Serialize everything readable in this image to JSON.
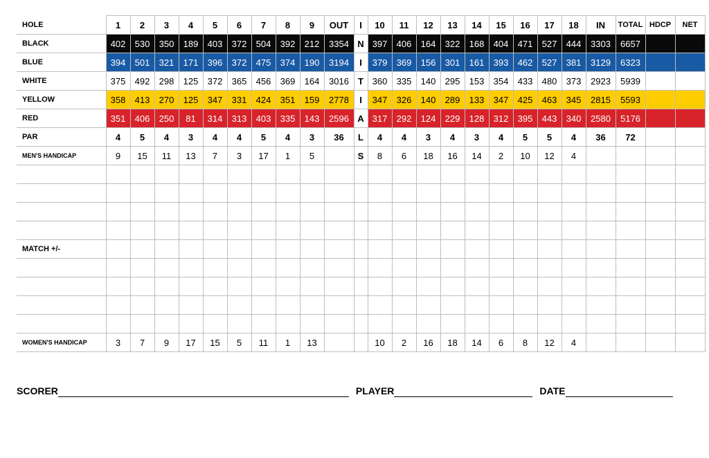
{
  "headers": {
    "hole": "HOLE",
    "out": "OUT",
    "in": "IN",
    "total": "TOTAL",
    "hdcp": "HDCP",
    "net": "NET"
  },
  "initials": [
    "I",
    "N",
    "I",
    "T",
    "I",
    "A",
    "L",
    "S"
  ],
  "labels": {
    "black": "BLACK",
    "blue": "BLUE",
    "white": "WHITE",
    "yellow": "YELLOW",
    "red": "RED",
    "par": "PAR",
    "mens_hcp": "MEN'S HANDICAP",
    "match": "MATCH +/-",
    "womens_hcp": "WOMEN'S HANDICAP"
  },
  "holes_front": [
    "1",
    "2",
    "3",
    "4",
    "5",
    "6",
    "7",
    "8",
    "9"
  ],
  "holes_back": [
    "10",
    "11",
    "12",
    "13",
    "14",
    "15",
    "16",
    "17",
    "18"
  ],
  "tees": {
    "black": {
      "front": [
        "402",
        "530",
        "350",
        "189",
        "403",
        "372",
        "504",
        "392",
        "212"
      ],
      "out": "3354",
      "back": [
        "397",
        "406",
        "164",
        "322",
        "168",
        "404",
        "471",
        "527",
        "444"
      ],
      "in": "3303",
      "total": "6657",
      "bg": "#0a0a0a",
      "fg": "#ffffff"
    },
    "blue": {
      "front": [
        "394",
        "501",
        "321",
        "171",
        "396",
        "372",
        "475",
        "374",
        "190"
      ],
      "out": "3194",
      "back": [
        "379",
        "369",
        "156",
        "301",
        "161",
        "393",
        "462",
        "527",
        "381"
      ],
      "in": "3129",
      "total": "6323",
      "bg": "#195aa5",
      "fg": "#ffffff"
    },
    "white": {
      "front": [
        "375",
        "492",
        "298",
        "125",
        "372",
        "365",
        "456",
        "369",
        "164"
      ],
      "out": "3016",
      "back": [
        "360",
        "335",
        "140",
        "295",
        "153",
        "354",
        "433",
        "480",
        "373"
      ],
      "in": "2923",
      "total": "5939",
      "bg": "#ffffff",
      "fg": "#000000"
    },
    "yellow": {
      "front": [
        "358",
        "413",
        "270",
        "125",
        "347",
        "331",
        "424",
        "351",
        "159"
      ],
      "out": "2778",
      "back": [
        "347",
        "326",
        "140",
        "289",
        "133",
        "347",
        "425",
        "463",
        "345"
      ],
      "in": "2815",
      "total": "5593",
      "bg": "#ffcc00",
      "fg": "#000000"
    },
    "red": {
      "front": [
        "351",
        "406",
        "250",
        "81",
        "314",
        "313",
        "403",
        "335",
        "143"
      ],
      "out": "2596",
      "back": [
        "317",
        "292",
        "124",
        "229",
        "128",
        "312",
        "395",
        "443",
        "340"
      ],
      "in": "2580",
      "total": "5176",
      "bg": "#d8232a",
      "fg": "#ffffff"
    }
  },
  "par": {
    "front": [
      "4",
      "5",
      "4",
      "3",
      "4",
      "4",
      "5",
      "4",
      "3"
    ],
    "out": "36",
    "back": [
      "4",
      "4",
      "3",
      "4",
      "3",
      "4",
      "5",
      "5",
      "4"
    ],
    "in": "36",
    "total": "72"
  },
  "mens_hcp": {
    "front": [
      "9",
      "15",
      "11",
      "13",
      "7",
      "3",
      "17",
      "1",
      "5"
    ],
    "back": [
      "8",
      "6",
      "18",
      "16",
      "14",
      "2",
      "10",
      "12",
      "4"
    ]
  },
  "womens_hcp": {
    "front": [
      "3",
      "7",
      "9",
      "17",
      "15",
      "5",
      "11",
      "1",
      "13"
    ],
    "back": [
      "10",
      "2",
      "16",
      "18",
      "14",
      "6",
      "8",
      "12",
      "4"
    ]
  },
  "footer": {
    "scorer": "SCORER",
    "player": "PLAYER",
    "date": "DATE"
  }
}
